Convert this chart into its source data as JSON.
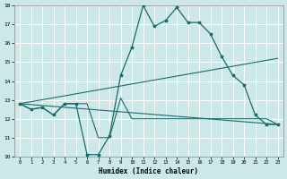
{
  "xlabel": "Humidex (Indice chaleur)",
  "ylabel": "",
  "xlim": [
    -0.5,
    23.5
  ],
  "ylim": [
    10,
    18
  ],
  "yticks": [
    10,
    11,
    12,
    13,
    14,
    15,
    16,
    17,
    18
  ],
  "xticks": [
    0,
    1,
    2,
    3,
    4,
    5,
    6,
    7,
    8,
    9,
    10,
    11,
    12,
    13,
    14,
    15,
    16,
    17,
    18,
    19,
    20,
    21,
    22,
    23
  ],
  "background_color": "#cce8e8",
  "grid_color": "#ffffff",
  "line_color": "#1a6b6b",
  "line_main": {
    "x": [
      0,
      1,
      2,
      3,
      4,
      5,
      6,
      7,
      8,
      9,
      10,
      11,
      12,
      13,
      14,
      15,
      16,
      17,
      18,
      19,
      20,
      21,
      22,
      23
    ],
    "y": [
      12.8,
      12.5,
      12.6,
      12.2,
      12.8,
      12.8,
      10.1,
      10.1,
      11.1,
      14.3,
      15.8,
      18.0,
      16.9,
      17.2,
      17.9,
      17.1,
      17.1,
      16.5,
      15.3,
      14.3,
      13.8,
      12.2,
      11.7,
      11.7
    ]
  },
  "line_low": {
    "x": [
      0,
      1,
      2,
      3,
      4,
      5,
      6,
      7,
      8,
      9,
      10,
      11,
      12,
      13,
      14,
      15,
      16,
      17,
      18,
      19,
      20,
      21,
      22,
      23
    ],
    "y": [
      12.8,
      12.5,
      12.6,
      12.2,
      12.8,
      12.8,
      12.8,
      11.0,
      11.0,
      13.1,
      12.0,
      12.0,
      12.0,
      12.0,
      12.0,
      12.0,
      12.0,
      12.0,
      12.0,
      12.0,
      12.0,
      12.0,
      12.0,
      11.7
    ]
  },
  "line_trend_up": {
    "x": [
      0,
      23
    ],
    "y": [
      12.8,
      15.2
    ]
  },
  "line_trend_down": {
    "x": [
      0,
      23
    ],
    "y": [
      12.8,
      11.7
    ]
  }
}
